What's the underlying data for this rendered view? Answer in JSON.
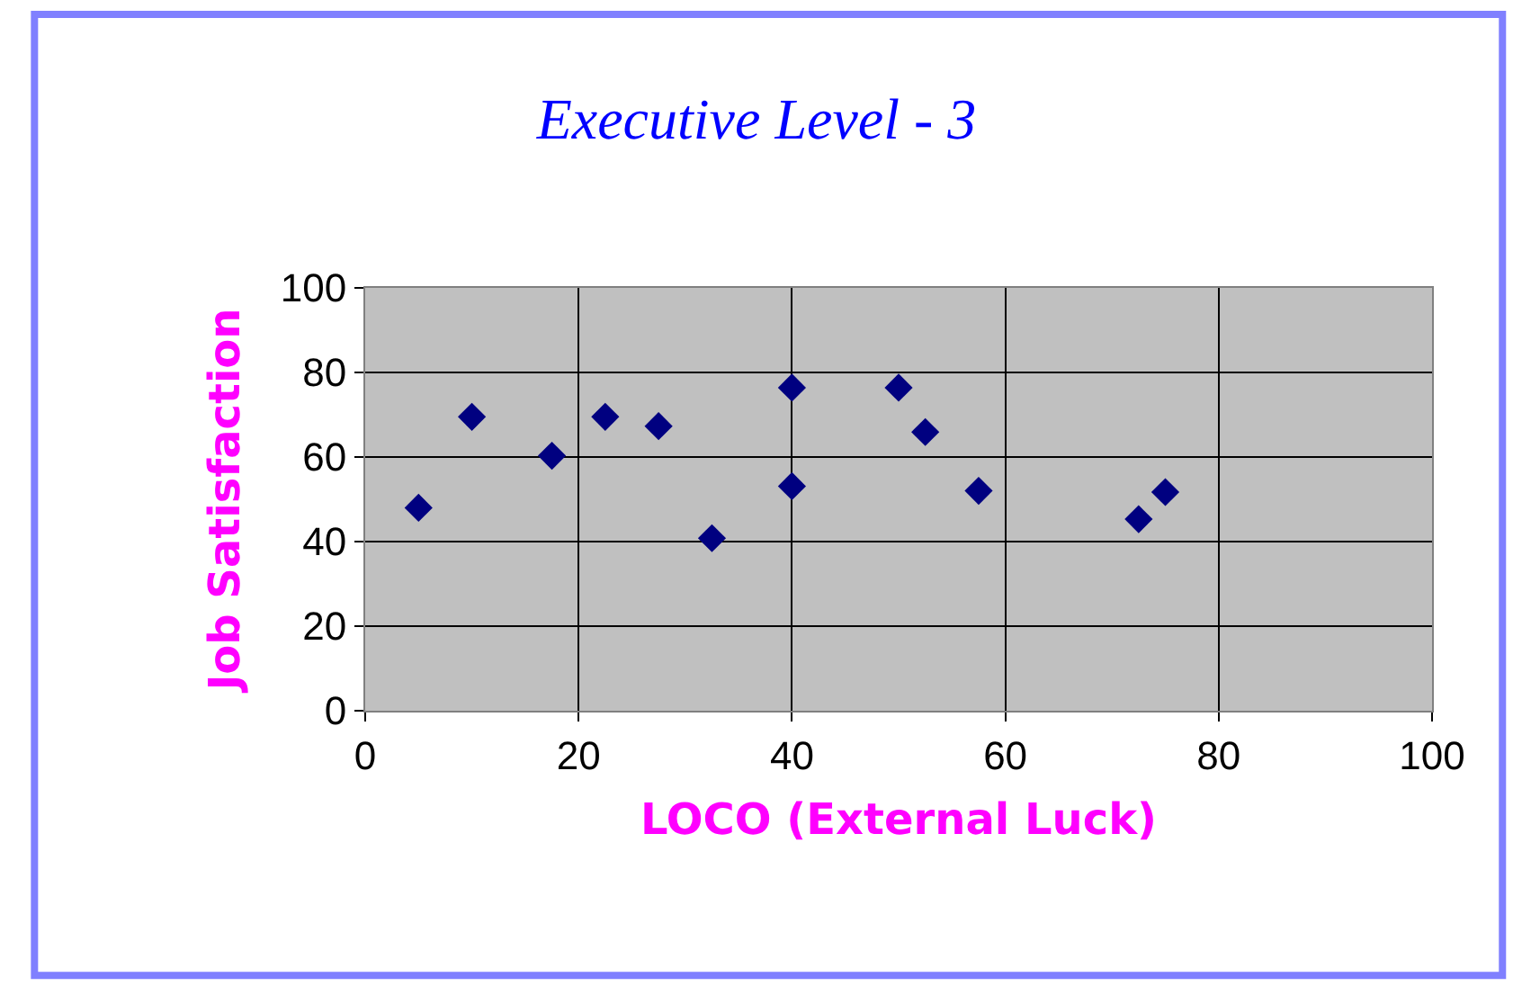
{
  "chart_data": {
    "type": "scatter",
    "title": "Executive Level - 3",
    "xlabel": "LOCO (External Luck)",
    "ylabel": "Job Satisfaction",
    "x": [
      5,
      10,
      17.5,
      22.5,
      27.5,
      32.5,
      40,
      40,
      50,
      52.5,
      57.5,
      72.5,
      75
    ],
    "series": [
      {
        "color": "#000080",
        "values": [
          48,
          69.5,
          60.3,
          69.5,
          67.3,
          40.8,
          76.4,
          53.1,
          76.4,
          65.9,
          52,
          45.3,
          51.7
        ]
      }
    ],
    "xlim": [
      0,
      100
    ],
    "ylim": [
      0,
      100
    ],
    "xticks": [
      0,
      20,
      40,
      60,
      80,
      100
    ],
    "yticks": [
      0,
      20,
      40,
      60,
      80,
      100
    ],
    "grid": true,
    "legend": false,
    "marker": "diamond"
  }
}
